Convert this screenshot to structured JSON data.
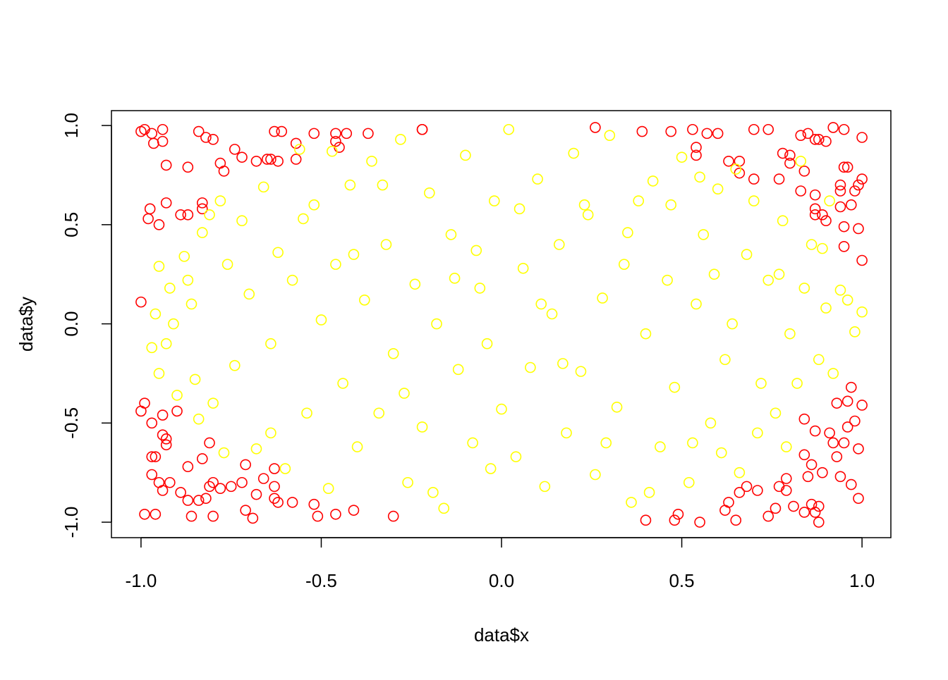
{
  "chart_data": {
    "type": "scatter",
    "x_label": "data$x",
    "y_label": "data$y",
    "xlim": [
      -1.082,
      1.08
    ],
    "ylim": [
      -1.078,
      1.075
    ],
    "xticks": [
      {
        "value": -1,
        "label": "-1.0"
      },
      -0.5,
      {
        "value": 0,
        "label": "0.0"
      },
      0.5,
      {
        "value": 1,
        "label": "1.0"
      }
    ],
    "yticks": [
      {
        "value": -1,
        "label": "-1.0"
      },
      -0.5,
      {
        "value": 0,
        "label": "0.0"
      },
      0.5,
      {
        "value": 1,
        "label": "1.0"
      }
    ],
    "series": [
      {
        "color": "#ff0000",
        "x": [
          -1.0,
          -0.99,
          -0.97,
          -0.965,
          -0.94,
          -0.94,
          -0.93,
          -0.84,
          -0.82,
          -0.8,
          -0.87,
          -0.83,
          -0.78,
          -0.77,
          -0.74,
          -0.72,
          -0.98,
          -0.975,
          -0.95,
          -0.93,
          -0.89,
          -0.87,
          -0.83,
          -1.0,
          -0.68,
          -0.65,
          -0.64,
          -0.62,
          -0.63,
          -0.61,
          -0.57,
          -0.57,
          -0.52,
          -0.46,
          -0.46,
          -0.45,
          -0.43,
          -0.37,
          -0.22,
          -0.22,
          0.26,
          0.39,
          0.47,
          0.53,
          0.54,
          0.57,
          0.6,
          0.54,
          0.63,
          0.66,
          0.66,
          0.7,
          0.7,
          0.74,
          0.77,
          0.78,
          0.8,
          0.83,
          0.85,
          0.87,
          0.88,
          0.9,
          0.92,
          0.95,
          1.0,
          0.8,
          0.84,
          0.83,
          0.87,
          0.87,
          0.87,
          0.89,
          0.9,
          0.94,
          0.94,
          0.94,
          0.95,
          0.96,
          0.95,
          0.95,
          0.98,
          0.99,
          0.99,
          1.0,
          0.97,
          1.0,
          -1.0,
          -0.99,
          -0.97,
          -0.97,
          -0.97,
          -0.96,
          -0.95,
          -0.94,
          -0.94,
          -0.93,
          -0.93,
          -0.94,
          -0.92,
          -0.9,
          -0.87,
          -0.89,
          -0.87,
          -0.99,
          -0.96,
          -0.86,
          -0.84,
          -0.82,
          -0.83,
          -0.81,
          -0.81,
          -0.8,
          -0.8,
          -0.78,
          -0.75,
          -0.72,
          -0.71,
          -0.71,
          -0.69,
          -0.68,
          -0.66,
          -0.63,
          -0.63,
          -0.63,
          -0.62,
          -0.58,
          -0.52,
          -0.51,
          -0.46,
          -0.41,
          -0.3,
          0.4,
          0.48,
          0.49,
          0.55,
          0.62,
          0.63,
          0.65,
          0.66,
          0.68,
          0.71,
          0.74,
          0.76,
          0.77,
          0.79,
          0.79,
          0.81,
          0.84,
          0.84,
          0.85,
          0.86,
          0.87,
          0.86,
          0.87,
          0.88,
          0.89,
          0.91,
          0.92,
          0.93,
          0.94,
          0.93,
          0.95,
          0.96,
          0.96,
          0.97,
          0.98,
          0.99,
          0.97,
          0.99,
          1.0,
          0.84,
          0.88
        ],
        "values": [
          0.97,
          0.98,
          0.96,
          0.91,
          0.98,
          0.92,
          0.8,
          0.97,
          0.94,
          0.93,
          0.79,
          0.61,
          0.81,
          0.77,
          0.88,
          0.84,
          0.53,
          0.58,
          0.5,
          0.61,
          0.55,
          0.55,
          0.58,
          0.11,
          0.82,
          0.83,
          0.83,
          0.82,
          0.97,
          0.97,
          0.83,
          0.91,
          0.96,
          0.96,
          0.92,
          0.89,
          0.96,
          0.96,
          0.98,
          0.98,
          0.99,
          0.97,
          0.97,
          0.98,
          0.89,
          0.96,
          0.96,
          0.85,
          0.82,
          0.82,
          0.76,
          0.73,
          0.98,
          0.98,
          0.73,
          0.86,
          0.85,
          0.95,
          0.96,
          0.93,
          0.93,
          0.92,
          0.99,
          0.98,
          0.94,
          0.81,
          0.77,
          0.67,
          0.65,
          0.58,
          0.55,
          0.55,
          0.52,
          0.7,
          0.67,
          0.59,
          0.79,
          0.79,
          0.49,
          0.39,
          0.67,
          0.7,
          0.48,
          0.32,
          0.6,
          0.73,
          -0.44,
          -0.4,
          -0.5,
          -0.67,
          -0.76,
          -0.67,
          -0.8,
          -0.46,
          -0.56,
          -0.58,
          -0.61,
          -0.84,
          -0.8,
          -0.44,
          -0.72,
          -0.85,
          -0.89,
          -0.96,
          -0.96,
          -0.97,
          -0.89,
          -0.88,
          -0.68,
          -0.6,
          -0.82,
          -0.8,
          -0.97,
          -0.83,
          -0.82,
          -0.8,
          -0.71,
          -0.94,
          -0.98,
          -0.86,
          -0.78,
          -0.73,
          -0.82,
          -0.88,
          -0.9,
          -0.9,
          -0.91,
          -0.97,
          -0.96,
          -0.94,
          -0.97,
          -0.99,
          -0.99,
          -0.96,
          -1.0,
          -0.94,
          -0.9,
          -0.99,
          -0.85,
          -0.82,
          -0.84,
          -0.97,
          -0.93,
          -0.82,
          -0.84,
          -0.78,
          -0.92,
          -0.95,
          -0.66,
          -0.77,
          -0.71,
          -0.54,
          -0.91,
          -0.95,
          -1.0,
          -0.75,
          -0.55,
          -0.6,
          -0.67,
          -0.77,
          -0.4,
          -0.6,
          -0.52,
          -0.39,
          -0.32,
          -0.49,
          -0.63,
          -0.81,
          -0.88,
          -0.41,
          -0.48,
          -0.92
        ]
      },
      {
        "color": "#ffff00",
        "x": [
          -0.95,
          -0.92,
          -0.96,
          -0.97,
          -0.93,
          -0.88,
          -0.86,
          -0.85,
          -0.83,
          -0.8,
          -0.78,
          -0.76,
          -0.74,
          -0.72,
          -0.7,
          -0.68,
          -0.66,
          -0.64,
          -0.62,
          -0.6,
          -0.58,
          -0.56,
          -0.54,
          -0.52,
          -0.5,
          -0.48,
          -0.46,
          -0.44,
          -0.42,
          -0.4,
          -0.38,
          -0.36,
          -0.34,
          -0.32,
          -0.3,
          -0.28,
          -0.26,
          -0.24,
          -0.22,
          -0.2,
          -0.18,
          -0.16,
          -0.14,
          -0.12,
          -0.1,
          -0.08,
          -0.06,
          -0.04,
          -0.02,
          0.0,
          0.02,
          0.04,
          0.06,
          0.08,
          0.1,
          0.12,
          0.14,
          0.16,
          0.18,
          0.2,
          0.22,
          0.24,
          0.26,
          0.28,
          0.3,
          0.32,
          0.34,
          0.36,
          0.38,
          0.4,
          0.42,
          0.44,
          0.46,
          0.48,
          0.5,
          0.52,
          0.54,
          0.56,
          0.58,
          0.6,
          0.62,
          0.64,
          0.66,
          0.68,
          0.7,
          0.72,
          0.74,
          0.76,
          0.78,
          0.8,
          0.82,
          0.84,
          0.86,
          0.88,
          0.9,
          0.92,
          0.94,
          0.96,
          0.98,
          1.0,
          -0.84,
          -0.9,
          -0.77,
          -0.64,
          -0.55,
          -0.47,
          -0.41,
          -0.33,
          -0.27,
          -0.19,
          -0.13,
          -0.07,
          -0.03,
          0.05,
          0.11,
          0.17,
          0.23,
          0.29,
          0.35,
          0.41,
          0.47,
          0.53,
          0.59,
          0.65,
          0.71,
          0.77,
          0.83,
          0.89,
          0.91,
          0.79,
          0.61,
          0.55,
          -0.91,
          -0.95,
          -0.87,
          -0.81
        ],
        "values": [
          0.29,
          0.18,
          0.05,
          -0.12,
          -0.1,
          0.34,
          0.1,
          -0.28,
          0.46,
          -0.4,
          0.62,
          0.3,
          -0.21,
          0.52,
          0.15,
          -0.63,
          0.69,
          -0.1,
          0.36,
          -0.73,
          0.22,
          0.88,
          -0.45,
          0.6,
          0.02,
          -0.83,
          0.3,
          -0.3,
          0.7,
          -0.62,
          0.12,
          0.82,
          -0.45,
          0.4,
          -0.15,
          0.93,
          -0.8,
          0.2,
          -0.52,
          0.66,
          0.0,
          -0.93,
          0.45,
          -0.23,
          0.85,
          -0.6,
          0.18,
          -0.1,
          0.62,
          -0.43,
          0.98,
          -0.67,
          0.28,
          -0.22,
          0.73,
          -0.82,
          0.05,
          0.4,
          -0.55,
          0.86,
          -0.24,
          0.55,
          -0.76,
          0.13,
          0.95,
          -0.42,
          0.3,
          -0.9,
          0.62,
          -0.05,
          0.72,
          -0.62,
          0.22,
          -0.32,
          0.84,
          -0.8,
          0.1,
          0.45,
          -0.5,
          0.68,
          -0.18,
          0.0,
          -0.75,
          0.35,
          0.62,
          -0.3,
          0.22,
          -0.45,
          0.52,
          -0.05,
          -0.3,
          0.18,
          0.4,
          -0.18,
          0.08,
          -0.25,
          0.17,
          0.12,
          -0.04,
          0.06,
          -0.48,
          -0.36,
          -0.65,
          -0.55,
          0.53,
          0.87,
          0.35,
          0.7,
          -0.35,
          -0.85,
          0.23,
          0.37,
          -0.73,
          0.58,
          0.1,
          -0.2,
          0.6,
          -0.6,
          0.46,
          -0.85,
          0.6,
          -0.6,
          0.25,
          0.78,
          -0.55,
          0.25,
          0.82,
          0.38,
          0.62,
          -0.62,
          -0.65,
          0.74,
          0.0,
          -0.25,
          0.22,
          0.55
        ]
      }
    ]
  }
}
